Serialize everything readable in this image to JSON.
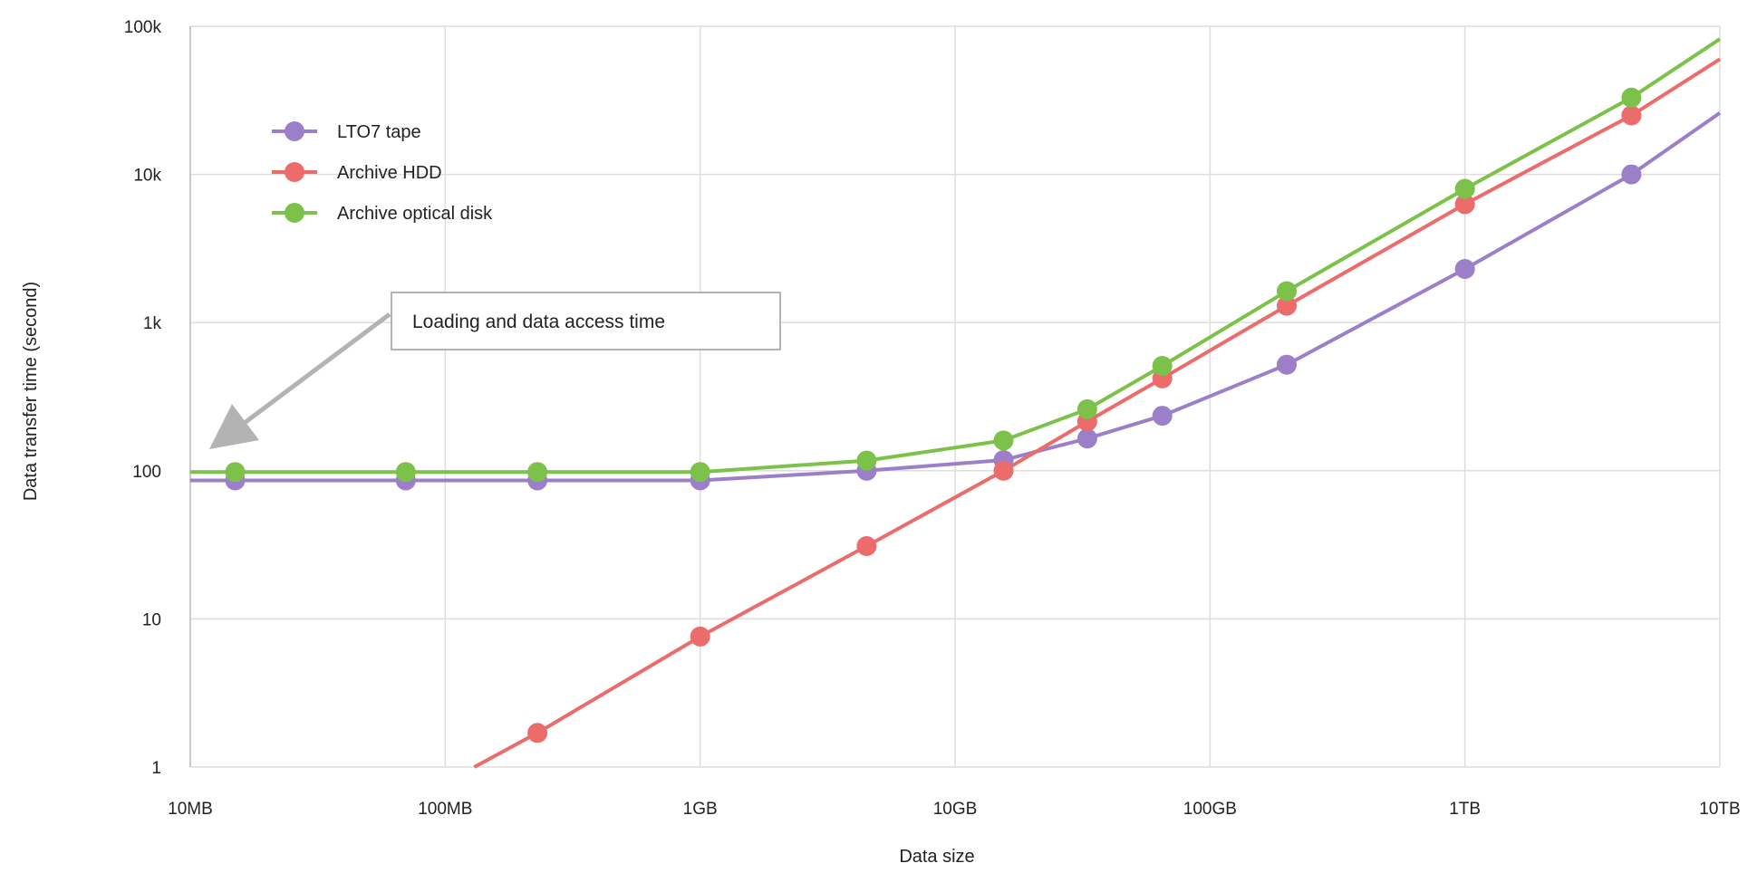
{
  "chart_data": {
    "type": "line",
    "title": "",
    "xlabel": "Data size",
    "ylabel": "Data transfer time (second)",
    "x_scale": "log",
    "y_scale": "log",
    "x_unit": "MB",
    "xlim": [
      10,
      10000000
    ],
    "ylim": [
      1,
      100000
    ],
    "x_ticks": [
      {
        "value": 10,
        "label": "10MB"
      },
      {
        "value": 100,
        "label": "100MB"
      },
      {
        "value": 1000,
        "label": "1GB"
      },
      {
        "value": 10000,
        "label": "10GB"
      },
      {
        "value": 100000,
        "label": "100GB"
      },
      {
        "value": 1000000,
        "label": "1TB"
      },
      {
        "value": 10000000,
        "label": "10TB"
      }
    ],
    "y_ticks": [
      {
        "value": 1,
        "label": "1"
      },
      {
        "value": 10,
        "label": "10"
      },
      {
        "value": 100,
        "label": "100"
      },
      {
        "value": 1000,
        "label": "1k"
      },
      {
        "value": 10000,
        "label": "10k"
      },
      {
        "value": 100000,
        "label": "100k"
      }
    ],
    "grid": true,
    "legend_position": "top-left",
    "annotation": {
      "text": "Loading and data access time",
      "points_to": {
        "x": 10,
        "y": 130
      }
    },
    "series": [
      {
        "name": "LTO7 tape",
        "color": "#9b7fc8",
        "line_start": {
          "x": 10,
          "y": 86
        },
        "line_end": {
          "x": 10000000,
          "y": 26000
        },
        "points": [
          {
            "x": 15,
            "y": 86
          },
          {
            "x": 70,
            "y": 86
          },
          {
            "x": 230,
            "y": 86
          },
          {
            "x": 1000,
            "y": 86
          },
          {
            "x": 4500,
            "y": 100
          },
          {
            "x": 15500,
            "y": 118
          },
          {
            "x": 33000,
            "y": 165
          },
          {
            "x": 65000,
            "y": 235
          },
          {
            "x": 200000,
            "y": 520
          },
          {
            "x": 1000000,
            "y": 2300
          },
          {
            "x": 4500000,
            "y": 10000
          }
        ]
      },
      {
        "name": "Archive HDD",
        "color": "#ec6b6b",
        "line_start": {
          "x": 130,
          "y": 1
        },
        "line_end": {
          "x": 10000000,
          "y": 60000
        },
        "points": [
          {
            "x": 230,
            "y": 1.7
          },
          {
            "x": 1000,
            "y": 7.6
          },
          {
            "x": 4500,
            "y": 31
          },
          {
            "x": 15500,
            "y": 100
          },
          {
            "x": 33000,
            "y": 215
          },
          {
            "x": 65000,
            "y": 420
          },
          {
            "x": 200000,
            "y": 1300
          },
          {
            "x": 1000000,
            "y": 6300
          },
          {
            "x": 4500000,
            "y": 25000
          }
        ]
      },
      {
        "name": "Archive optical disk",
        "color": "#7cc24a",
        "line_start": {
          "x": 10,
          "y": 98
        },
        "line_end": {
          "x": 10000000,
          "y": 82000
        },
        "points": [
          {
            "x": 15,
            "y": 98
          },
          {
            "x": 70,
            "y": 98
          },
          {
            "x": 230,
            "y": 98
          },
          {
            "x": 1000,
            "y": 98
          },
          {
            "x": 4500,
            "y": 117
          },
          {
            "x": 15500,
            "y": 160
          },
          {
            "x": 33000,
            "y": 260
          },
          {
            "x": 65000,
            "y": 510
          },
          {
            "x": 200000,
            "y": 1630
          },
          {
            "x": 1000000,
            "y": 8000
          },
          {
            "x": 4500000,
            "y": 33000
          }
        ]
      }
    ]
  }
}
